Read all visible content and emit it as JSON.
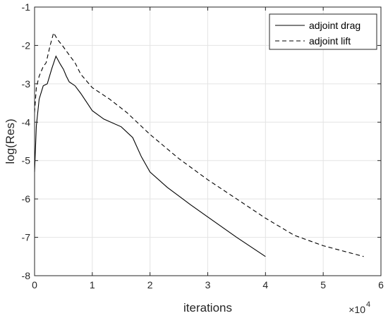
{
  "chart_data": {
    "type": "line",
    "title": "",
    "xlabel": "iterations",
    "ylabel": "log(Res)",
    "x_exponent_label": "×10",
    "x_exponent_power": "4",
    "xlim": [
      0,
      6
    ],
    "ylim": [
      -8,
      -1
    ],
    "xticks": [
      0,
      1,
      2,
      3,
      4,
      5,
      6
    ],
    "yticks": [
      -8,
      -7,
      -6,
      -5,
      -4,
      -3,
      -2,
      -1
    ],
    "xtick_labels": [
      "0",
      "1",
      "2",
      "3",
      "4",
      "5",
      "6"
    ],
    "ytick_labels": [
      "-8",
      "-7",
      "-6",
      "-5",
      "-4",
      "-3",
      "-2",
      "-1"
    ],
    "grid": true,
    "legend_position": "top-right",
    "series": [
      {
        "name": "adjoint drag",
        "style": "solid",
        "color": "#000000",
        "x": [
          0,
          0.03,
          0.08,
          0.15,
          0.22,
          0.3,
          0.37,
          0.45,
          0.5,
          0.55,
          0.6,
          0.7,
          0.8,
          1.0,
          1.2,
          1.5,
          1.7,
          1.85,
          2.0,
          2.3,
          2.7,
          3.0,
          3.5,
          4.0
        ],
        "y": [
          -5.3,
          -4.1,
          -3.4,
          -3.05,
          -3.0,
          -2.6,
          -2.28,
          -2.5,
          -2.62,
          -2.8,
          -2.95,
          -3.05,
          -3.25,
          -3.7,
          -3.92,
          -4.12,
          -4.4,
          -4.9,
          -5.3,
          -5.7,
          -6.15,
          -6.47,
          -7.0,
          -7.5
        ]
      },
      {
        "name": "adjoint lift",
        "style": "dashed",
        "color": "#000000",
        "x": [
          0,
          0.03,
          0.08,
          0.15,
          0.2,
          0.27,
          0.33,
          0.4,
          0.48,
          0.6,
          0.7,
          0.8,
          1.0,
          1.3,
          1.6,
          2.0,
          2.5,
          3.0,
          3.5,
          4.0,
          4.5,
          5.0,
          5.7
        ],
        "y": [
          -3.75,
          -3.1,
          -2.8,
          -2.55,
          -2.45,
          -2.0,
          -1.67,
          -1.85,
          -2.0,
          -2.25,
          -2.45,
          -2.75,
          -3.1,
          -3.4,
          -3.75,
          -4.32,
          -4.95,
          -5.5,
          -6.0,
          -6.5,
          -6.95,
          -7.22,
          -7.5
        ]
      }
    ]
  }
}
